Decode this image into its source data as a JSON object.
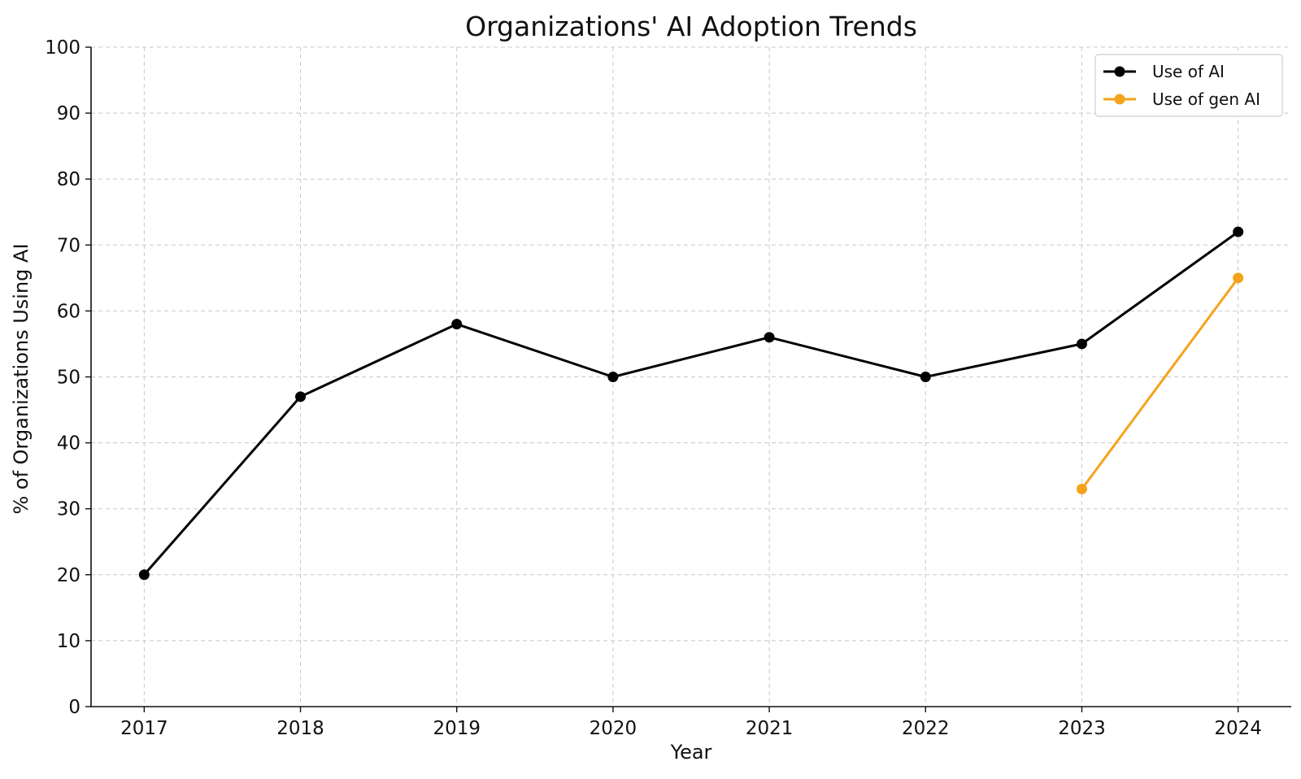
{
  "chart_data": {
    "type": "line",
    "title": "Organizations' AI Adoption Trends",
    "xlabel": "Year",
    "ylabel": "% of Organizations Using AI",
    "categories": [
      "2017",
      "2018",
      "2019",
      "2020",
      "2021",
      "2022",
      "2023",
      "2024"
    ],
    "ylim": [
      0,
      100
    ],
    "yticks": [
      0,
      10,
      20,
      30,
      40,
      50,
      60,
      70,
      80,
      90,
      100
    ],
    "grid": true,
    "legend_position": "top-right",
    "series": [
      {
        "name": "Use of AI",
        "color": "#000000",
        "values": [
          20,
          47,
          58,
          50,
          56,
          50,
          55,
          72
        ]
      },
      {
        "name": "Use of gen AI",
        "color": "#f5a31a",
        "values": [
          null,
          null,
          null,
          null,
          null,
          null,
          33,
          65
        ]
      }
    ]
  }
}
